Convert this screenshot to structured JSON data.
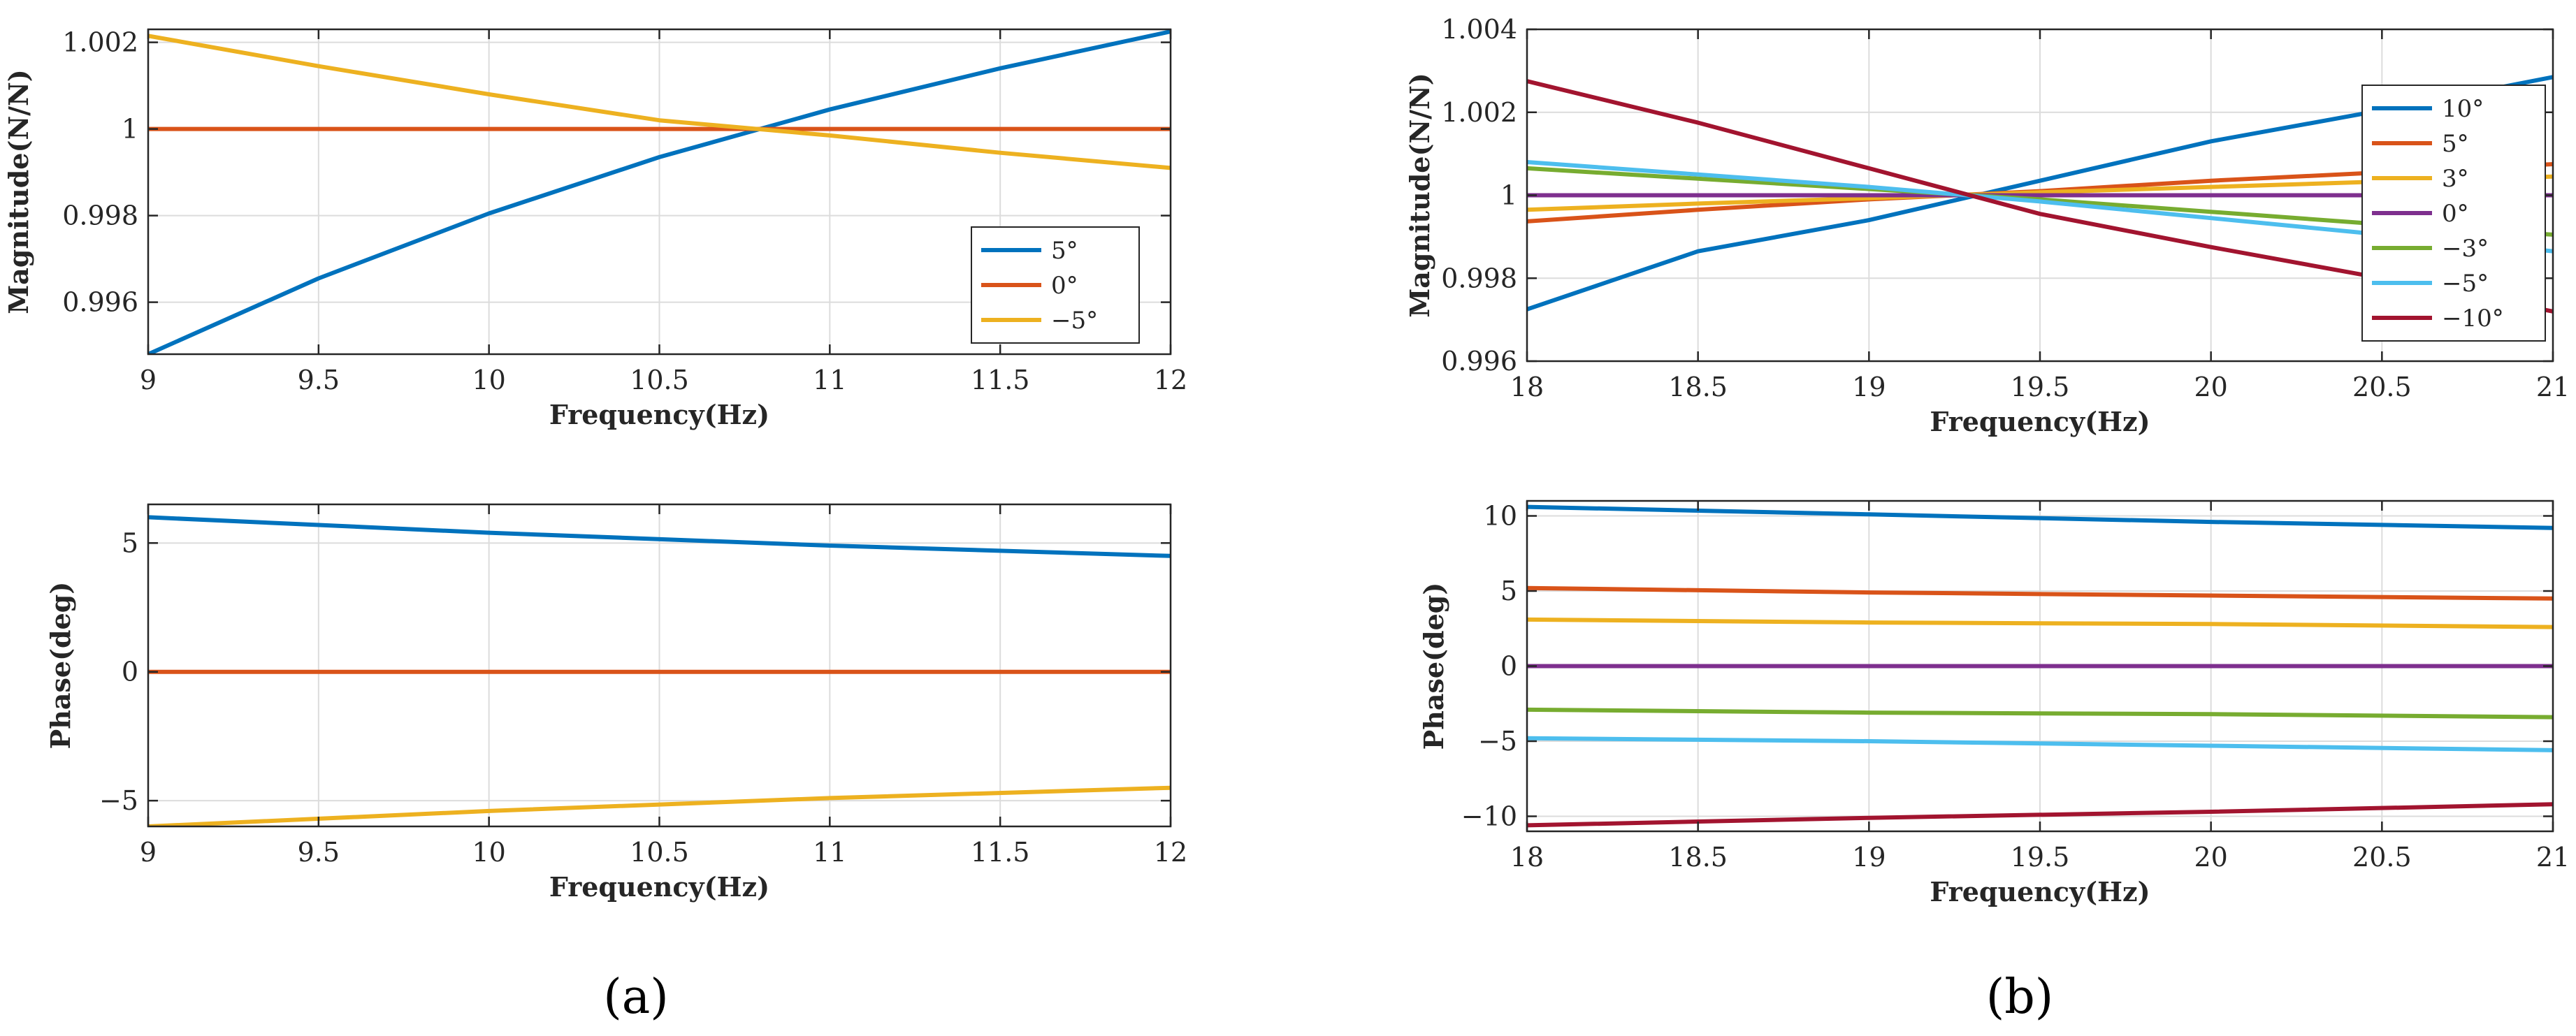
{
  "chart_data": [
    {
      "type": "line",
      "panel": "a",
      "xlabel": "Frequency(Hz)",
      "ylabel": "Magnitude(N/N)",
      "xlim": [
        9,
        12
      ],
      "ylim": [
        0.9948,
        1.0023
      ],
      "xticks": [
        9,
        9.5,
        10,
        10.5,
        11,
        11.5,
        12
      ],
      "xtick_labels": [
        "9",
        "9.5",
        "10",
        "10.5",
        "11",
        "11.5",
        "12"
      ],
      "yticks": [
        0.996,
        0.998,
        1,
        1.002
      ],
      "ytick_labels": [
        "0.996",
        "0.998",
        "1",
        "1.002"
      ],
      "grid": true,
      "legend_position": "bottom-right",
      "series": [
        {
          "name": "5°",
          "color": "#0072BD",
          "x": [
            9,
            9.5,
            10,
            10.5,
            11,
            11.5,
            12
          ],
          "y": [
            0.9948,
            0.99655,
            0.99805,
            0.99935,
            1.00045,
            1.0014,
            1.00225
          ]
        },
        {
          "name": "0°",
          "color": "#D95319",
          "x": [
            9,
            12
          ],
          "y": [
            1.0,
            1.0
          ]
        },
        {
          "name": "−5°",
          "color": "#EDB120",
          "x": [
            9,
            9.5,
            10,
            10.5,
            11,
            11.5,
            12
          ],
          "y": [
            1.00215,
            1.00145,
            1.0008,
            1.0002,
            0.99985,
            0.99945,
            0.9991
          ]
        }
      ]
    },
    {
      "type": "line",
      "panel": "a",
      "xlabel": "Frequency(Hz)",
      "ylabel": "Phase(deg)",
      "xlim": [
        9,
        12
      ],
      "ylim": [
        -6,
        6.5
      ],
      "xticks": [
        9,
        9.5,
        10,
        10.5,
        11,
        11.5,
        12
      ],
      "xtick_labels": [
        "9",
        "9.5",
        "10",
        "10.5",
        "11",
        "11.5",
        "12"
      ],
      "yticks": [
        -5,
        0,
        5
      ],
      "ytick_labels": [
        "−5",
        "0",
        "5"
      ],
      "grid": true,
      "series": [
        {
          "name": "5°",
          "color": "#0072BD",
          "x": [
            9,
            10,
            11,
            12
          ],
          "y": [
            6.0,
            5.4,
            4.9,
            4.5
          ]
        },
        {
          "name": "0°",
          "color": "#D95319",
          "x": [
            9,
            12
          ],
          "y": [
            0,
            0
          ]
        },
        {
          "name": "−5°",
          "color": "#EDB120",
          "x": [
            9,
            10,
            11,
            12
          ],
          "y": [
            -6.0,
            -5.4,
            -4.9,
            -4.5
          ]
        }
      ]
    },
    {
      "type": "line",
      "panel": "b",
      "xlabel": "Frequency(Hz)",
      "ylabel": "Magnitude(N/N)",
      "xlim": [
        18,
        21
      ],
      "ylim": [
        0.996,
        1.004
      ],
      "xticks": [
        18,
        18.5,
        19,
        19.5,
        20,
        20.5,
        21
      ],
      "xtick_labels": [
        "18",
        "18.5",
        "19",
        "19.5",
        "20",
        "20.5",
        "21"
      ],
      "yticks": [
        0.996,
        0.998,
        1,
        1.002,
        1.004
      ],
      "ytick_labels": [
        "0.996",
        "0.998",
        "1",
        "1.002",
        "1.004"
      ],
      "grid": true,
      "legend_position": "top-right",
      "series": [
        {
          "name": "10°",
          "color": "#0072BD",
          "x": [
            18,
            18.5,
            19,
            19.5,
            20,
            20.5,
            21
          ],
          "y": [
            0.99725,
            0.99865,
            0.9994,
            1.00035,
            1.0013,
            1.00205,
            1.00285
          ]
        },
        {
          "name": "5°",
          "color": "#D95319",
          "x": [
            18,
            18.5,
            19,
            19.5,
            20,
            20.5,
            21
          ],
          "y": [
            0.99937,
            0.99965,
            0.9999,
            1.0001,
            1.00035,
            1.00055,
            1.00075
          ]
        },
        {
          "name": "3°",
          "color": "#EDB120",
          "x": [
            18,
            18.5,
            19,
            19.5,
            20,
            20.5,
            21
          ],
          "y": [
            0.99965,
            0.9998,
            0.99993,
            1.00007,
            1.0002,
            1.00033,
            1.00045
          ]
        },
        {
          "name": "0°",
          "color": "#7E2F8E",
          "x": [
            18,
            21
          ],
          "y": [
            1.0,
            1.0
          ]
        },
        {
          "name": "−3°",
          "color": "#77AC30",
          "x": [
            18,
            18.5,
            19,
            19.5,
            20,
            20.5,
            21
          ],
          "y": [
            1.00065,
            1.0004,
            1.00015,
            0.9999,
            0.9996,
            0.9993,
            0.99905
          ]
        },
        {
          "name": "−5°",
          "color": "#4DBEEE",
          "x": [
            18,
            18.5,
            19,
            19.5,
            20,
            20.5,
            21
          ],
          "y": [
            1.0008,
            1.0005,
            1.0002,
            0.99985,
            0.99945,
            0.99905,
            0.99865
          ]
        },
        {
          "name": "−10°",
          "color": "#A2142F",
          "x": [
            18,
            18.5,
            19,
            19.5,
            20,
            20.5,
            21
          ],
          "y": [
            1.00275,
            1.00175,
            1.00065,
            0.99955,
            0.99875,
            0.998,
            0.9972
          ]
        }
      ]
    },
    {
      "type": "line",
      "panel": "b",
      "xlabel": "Frequency(Hz)",
      "ylabel": "Phase(deg)",
      "xlim": [
        18,
        21
      ],
      "ylim": [
        -11,
        11
      ],
      "xticks": [
        18,
        18.5,
        19,
        19.5,
        20,
        20.5,
        21
      ],
      "xtick_labels": [
        "18",
        "18.5",
        "19",
        "19.5",
        "20",
        "20.5",
        "21"
      ],
      "yticks": [
        -10,
        -5,
        0,
        5,
        10
      ],
      "ytick_labels": [
        "−10",
        "−5",
        "0",
        "5",
        "10"
      ],
      "grid": true,
      "series": [
        {
          "name": "10°",
          "color": "#0072BD",
          "x": [
            18,
            19,
            20,
            21
          ],
          "y": [
            10.6,
            10.1,
            9.6,
            9.2
          ]
        },
        {
          "name": "5°",
          "color": "#D95319",
          "x": [
            18,
            19,
            20,
            21
          ],
          "y": [
            5.2,
            4.9,
            4.7,
            4.5
          ]
        },
        {
          "name": "3°",
          "color": "#EDB120",
          "x": [
            18,
            19,
            20,
            21
          ],
          "y": [
            3.1,
            2.9,
            2.8,
            2.6
          ]
        },
        {
          "name": "0°",
          "color": "#7E2F8E",
          "x": [
            18,
            21
          ],
          "y": [
            0,
            0
          ]
        },
        {
          "name": "−3°",
          "color": "#77AC30",
          "x": [
            18,
            19,
            20,
            21
          ],
          "y": [
            -2.9,
            -3.1,
            -3.2,
            -3.4
          ]
        },
        {
          "name": "−5°",
          "color": "#4DBEEE",
          "x": [
            18,
            19,
            20,
            21
          ],
          "y": [
            -4.8,
            -5.0,
            -5.3,
            -5.6
          ]
        },
        {
          "name": "−10°",
          "color": "#A2142F",
          "x": [
            18,
            19,
            20,
            21
          ],
          "y": [
            -10.6,
            -10.1,
            -9.7,
            -9.2
          ]
        }
      ]
    }
  ],
  "captions": {
    "a": "(a)",
    "b": "(b)"
  }
}
